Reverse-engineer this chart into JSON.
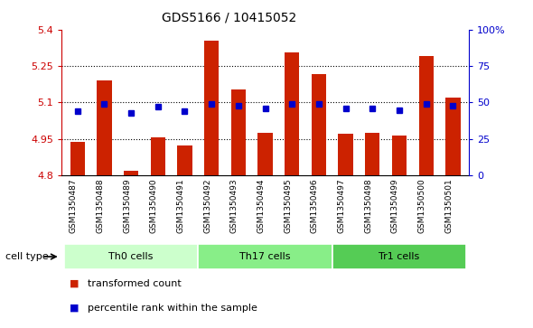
{
  "title": "GDS5166 / 10415052",
  "samples": [
    "GSM1350487",
    "GSM1350488",
    "GSM1350489",
    "GSM1350490",
    "GSM1350491",
    "GSM1350492",
    "GSM1350493",
    "GSM1350494",
    "GSM1350495",
    "GSM1350496",
    "GSM1350497",
    "GSM1350498",
    "GSM1350499",
    "GSM1350500",
    "GSM1350501"
  ],
  "transformed_count": [
    4.94,
    5.19,
    4.82,
    4.955,
    4.925,
    5.355,
    5.155,
    4.975,
    5.305,
    5.215,
    4.97,
    4.975,
    4.965,
    5.29,
    5.12
  ],
  "percentile_rank": [
    44,
    49,
    43,
    47,
    44,
    49,
    48,
    46,
    49,
    49,
    46,
    46,
    45,
    49,
    48
  ],
  "cell_types": [
    {
      "label": "Th0 cells",
      "start": 0,
      "end": 5,
      "color": "#ccffcc"
    },
    {
      "label": "Th17 cells",
      "start": 5,
      "end": 10,
      "color": "#88ee88"
    },
    {
      "label": "Tr1 cells",
      "start": 10,
      "end": 15,
      "color": "#55cc55"
    }
  ],
  "bar_color": "#cc2200",
  "dot_color": "#0000cc",
  "ylim_left": [
    4.8,
    5.4
  ],
  "ylim_right": [
    0,
    100
  ],
  "yticks_left": [
    4.8,
    4.95,
    5.1,
    5.25,
    5.4
  ],
  "yticks_right": [
    0,
    25,
    50,
    75,
    100
  ],
  "ytick_labels_right": [
    "0",
    "25",
    "50",
    "75",
    "100%"
  ],
  "grid_values": [
    4.95,
    5.1,
    5.25
  ],
  "bg_color": "#ffffff",
  "bar_width": 0.55,
  "legend_items": [
    {
      "color": "#cc2200",
      "label": "transformed count"
    },
    {
      "color": "#0000cc",
      "label": "percentile rank within the sample"
    }
  ],
  "cell_type_label": "cell type",
  "label_bg_color": "#d3d3d3"
}
